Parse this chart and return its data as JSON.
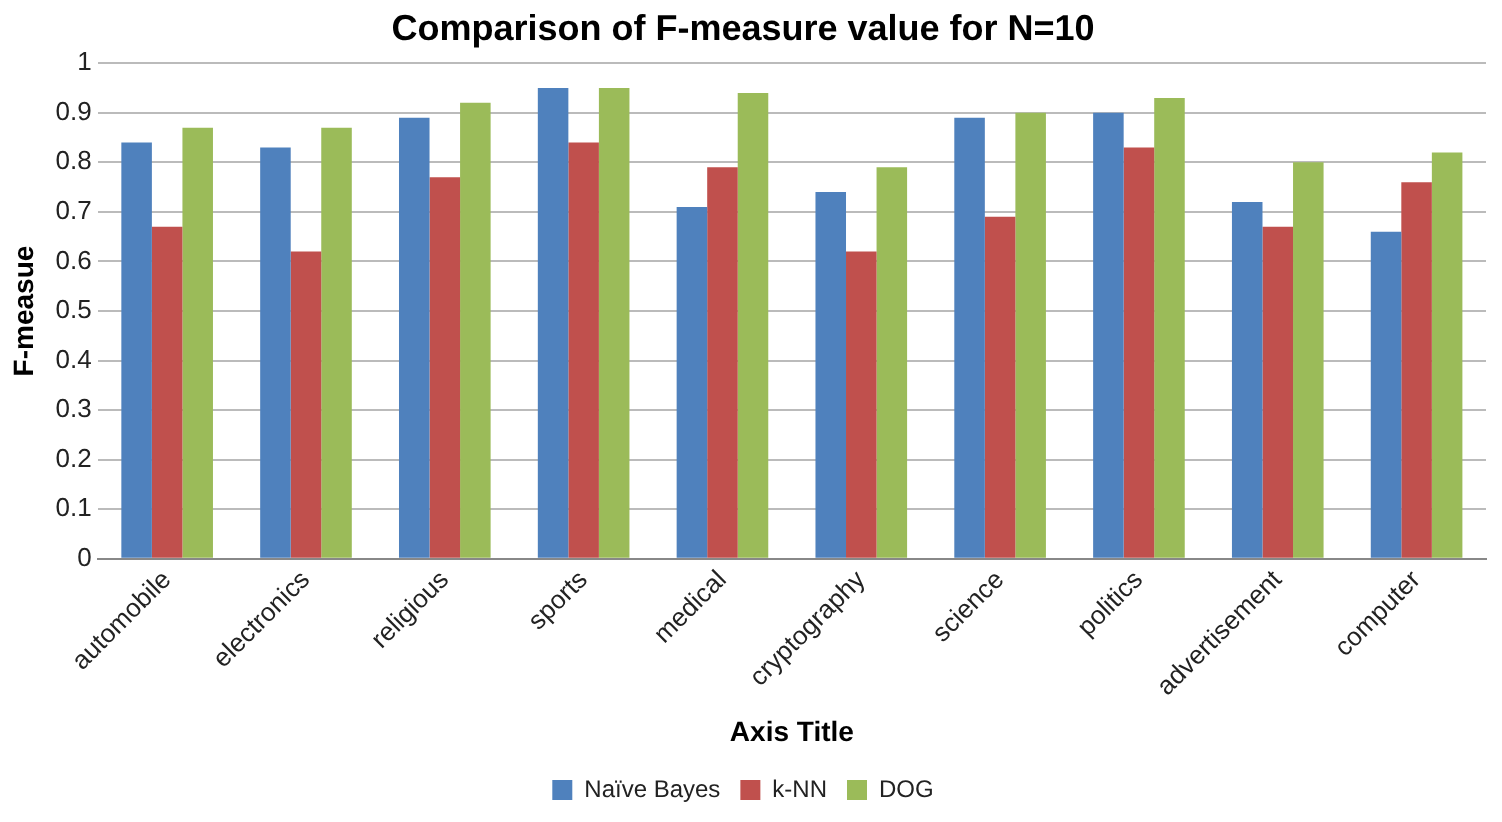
{
  "chart_data": {
    "type": "bar",
    "title": "Comparison of F-measure value for N=10",
    "xlabel": "Axis Title",
    "ylabel": "F-measue",
    "categories": [
      "automobile",
      "electronics",
      "religious",
      "sports",
      "medical",
      "cryptography",
      "science",
      "politics",
      "advertisement",
      "computer"
    ],
    "series": [
      {
        "name": "Naïve Bayes",
        "color": "#4f81bd",
        "values": [
          0.84,
          0.83,
          0.89,
          0.95,
          0.71,
          0.74,
          0.89,
          0.9,
          0.72,
          0.66
        ]
      },
      {
        "name": "k-NN",
        "color": "#c0504d",
        "values": [
          0.67,
          0.62,
          0.77,
          0.84,
          0.79,
          0.62,
          0.69,
          0.83,
          0.67,
          0.76
        ]
      },
      {
        "name": "DOG",
        "color": "#9bbb59",
        "values": [
          0.87,
          0.87,
          0.92,
          0.95,
          0.94,
          0.79,
          0.9,
          0.93,
          0.8,
          0.82
        ]
      }
    ],
    "ylim": [
      0,
      1
    ],
    "yticks": [
      0,
      0.1,
      0.2,
      0.3,
      0.4,
      0.5,
      0.6,
      0.7,
      0.8,
      0.9,
      1
    ],
    "grid": "y",
    "legend": "bottom"
  }
}
